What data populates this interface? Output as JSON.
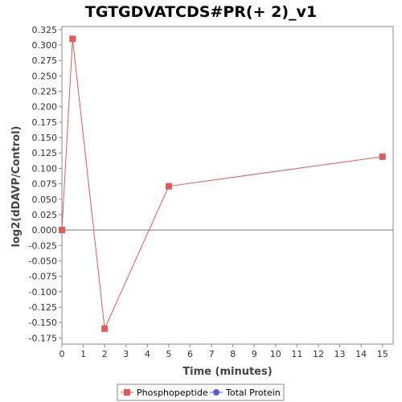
{
  "chart_data": {
    "type": "line",
    "title": "TGTGDVATCDS#PR(+ 2)_v1",
    "xlabel": "Time (minutes)",
    "ylabel": "log2(dDAVP/Control)",
    "xlim": [
      0,
      15.5
    ],
    "ylim": [
      -0.185,
      0.33
    ],
    "x_ticks": [
      0,
      1,
      2,
      3,
      4,
      5,
      6,
      7,
      8,
      9,
      10,
      11,
      12,
      13,
      14,
      15
    ],
    "y_ticks": [
      -0.175,
      -0.15,
      -0.125,
      -0.1,
      -0.075,
      -0.05,
      -0.025,
      0,
      0.025,
      0.05,
      0.075,
      0.1,
      0.125,
      0.15,
      0.175,
      0.2,
      0.225,
      0.25,
      0.275,
      0.3,
      0.325
    ],
    "y_tick_labels": [
      "-0.175",
      "-0.150",
      "-0.125",
      "-0.100",
      "-0.075",
      "-0.050",
      "-0.025",
      "0.000",
      "0.025",
      "0.050",
      "0.075",
      "0.100",
      "0.125",
      "0.150",
      "0.175",
      "0.200",
      "0.225",
      "0.250",
      "0.275",
      "0.300",
      "0.325"
    ],
    "grid": false,
    "zero_line": true,
    "legend_position": "bottom",
    "series": [
      {
        "name": "Phosphopeptide",
        "color": "#e05a5a",
        "marker": "square",
        "x": [
          0,
          0.5,
          2,
          5,
          15
        ],
        "y": [
          0.0,
          0.31,
          -0.16,
          0.071,
          0.119
        ]
      },
      {
        "name": "Total Protein",
        "color": "#5a5ae0",
        "marker": "circle",
        "x": [],
        "y": []
      }
    ]
  }
}
